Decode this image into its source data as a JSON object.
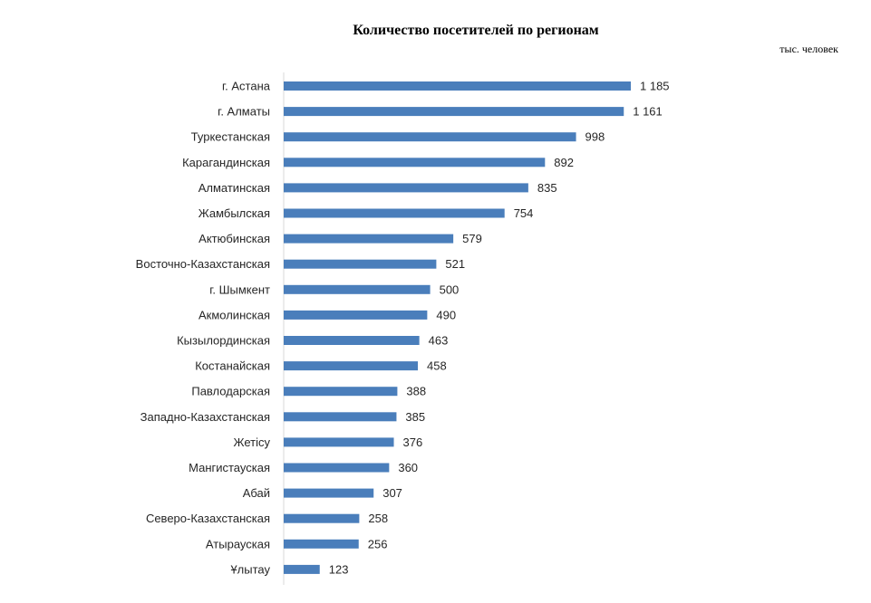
{
  "chart_data": {
    "type": "bar",
    "orientation": "horizontal",
    "title": "Количество посетителей по регионам",
    "unit_label": "тыс. человек",
    "categories": [
      "г. Астана",
      "г. Алматы",
      "Туркестанская",
      "Карагандинская",
      "Алматинская",
      "Жамбылская",
      "Актюбинская",
      "Восточно-Казахстанская",
      "г. Шымкент",
      "Акмолинская",
      "Кызылординская",
      "Костанайская",
      "Павлодарская",
      "Западно-Казахстанская",
      "Жетісу",
      "Мангистауская",
      "Абай",
      "Северо-Казахстанская",
      "Атырауская",
      "Ұлытау"
    ],
    "values": [
      1185,
      1161,
      998,
      892,
      835,
      754,
      579,
      521,
      500,
      490,
      463,
      458,
      388,
      385,
      376,
      360,
      307,
      258,
      256,
      123
    ],
    "value_labels": [
      "1 185",
      "1 161",
      "998",
      "892",
      "835",
      "754",
      "579",
      "521",
      "500",
      "490",
      "463",
      "458",
      "388",
      "385",
      "376",
      "360",
      "307",
      "258",
      "256",
      "123"
    ],
    "bar_color": "#4a7ebb",
    "xlim": [
      0,
      1185
    ],
    "grid": false,
    "legend": "none"
  }
}
